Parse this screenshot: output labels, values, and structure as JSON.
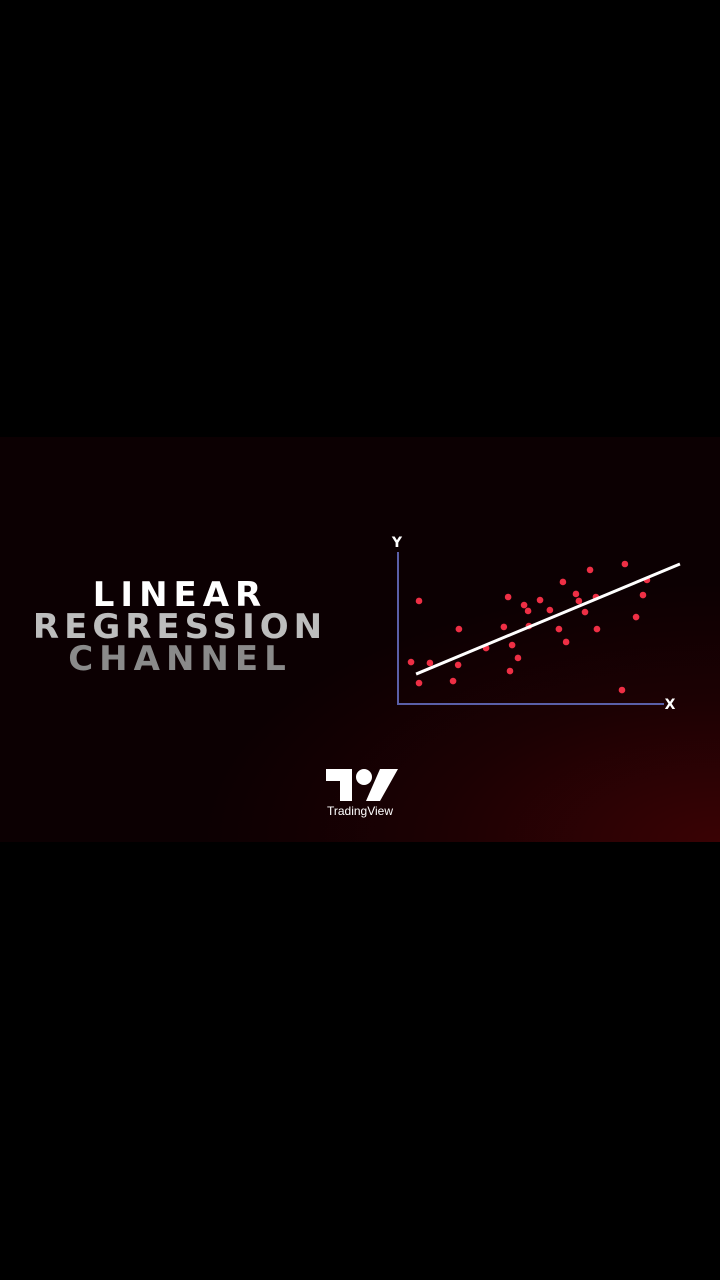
{
  "title": {
    "line1": "LINEAR",
    "line2": "REGRESSION",
    "line3": "CHANNEL"
  },
  "brand": {
    "name": "TradingView",
    "icon": "tradingview-logo"
  },
  "colors": {
    "points": "#ee2f45",
    "line": "#ffffff",
    "axes": "#5a5fa8",
    "background": "#000000",
    "banner_accent": "#3a0204"
  },
  "chart_data": {
    "type": "scatter",
    "xlabel": "X",
    "ylabel": "Y",
    "xlim": [
      0,
      100
    ],
    "ylim": [
      0,
      100
    ],
    "grid": false,
    "points": [
      [
        4.9,
        27.6
      ],
      [
        7.9,
        67.8
      ],
      [
        7.9,
        13.8
      ],
      [
        12.0,
        27.0
      ],
      [
        20.7,
        15.1
      ],
      [
        22.6,
        25.7
      ],
      [
        22.9,
        49.3
      ],
      [
        33.1,
        36.8
      ],
      [
        39.8,
        50.7
      ],
      [
        41.4,
        70.4
      ],
      [
        42.1,
        21.7
      ],
      [
        42.9,
        38.8
      ],
      [
        45.1,
        30.3
      ],
      [
        47.4,
        65.1
      ],
      [
        48.9,
        61.2
      ],
      [
        49.2,
        51.3
      ],
      [
        53.4,
        68.4
      ],
      [
        57.1,
        61.8
      ],
      [
        60.5,
        49.3
      ],
      [
        62.0,
        80.3
      ],
      [
        63.2,
        40.8
      ],
      [
        66.9,
        72.4
      ],
      [
        68.0,
        67.8
      ],
      [
        70.3,
        60.5
      ],
      [
        72.2,
        88.2
      ],
      [
        74.4,
        70.4
      ],
      [
        74.8,
        49.3
      ],
      [
        84.2,
        9.2
      ],
      [
        85.3,
        92.1
      ],
      [
        89.5,
        57.2
      ],
      [
        92.1,
        71.7
      ],
      [
        93.6,
        81.6
      ]
    ],
    "regression_line": [
      [
        6.8,
        19.7
      ],
      [
        106.0,
        92.1
      ]
    ]
  }
}
